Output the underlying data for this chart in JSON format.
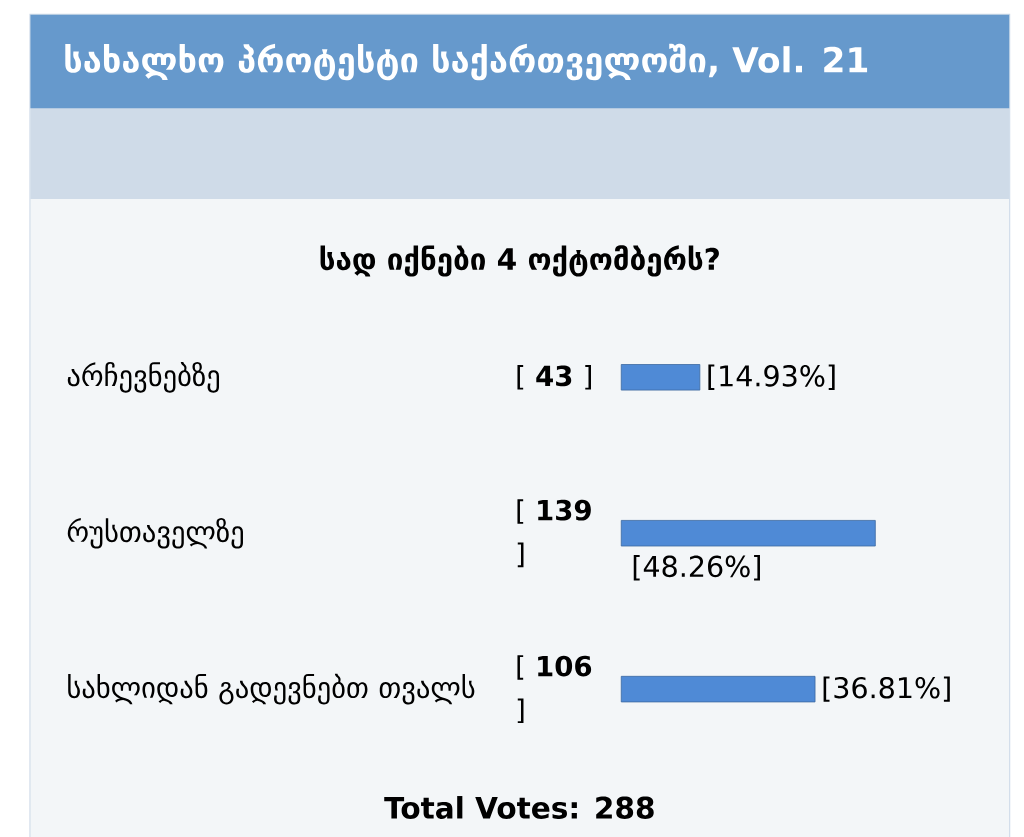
{
  "chart_data": {
    "type": "bar",
    "orientation": "horizontal",
    "title": "სახალხო პროტესტი საქართველოში, Vol. 21",
    "subtitle": "სად იქნები 4 ოქტომბერს?",
    "categories": [
      "არჩევნებზე",
      "რუსთაველზე",
      "სახლიდან გადევნებთ თვალს"
    ],
    "values": [
      14.93,
      48.26,
      36.81
    ],
    "value_labels": [
      "[14.93%]",
      "[48.26%]",
      "[36.81%]"
    ],
    "color": "#4f8ad6",
    "tick_labels": "y",
    "annotations": [
      "[ **43** ]",
      "[ **139** ]",
      "[ **106** ]",
      "Total Votes: 288"
    ]
  }
}
